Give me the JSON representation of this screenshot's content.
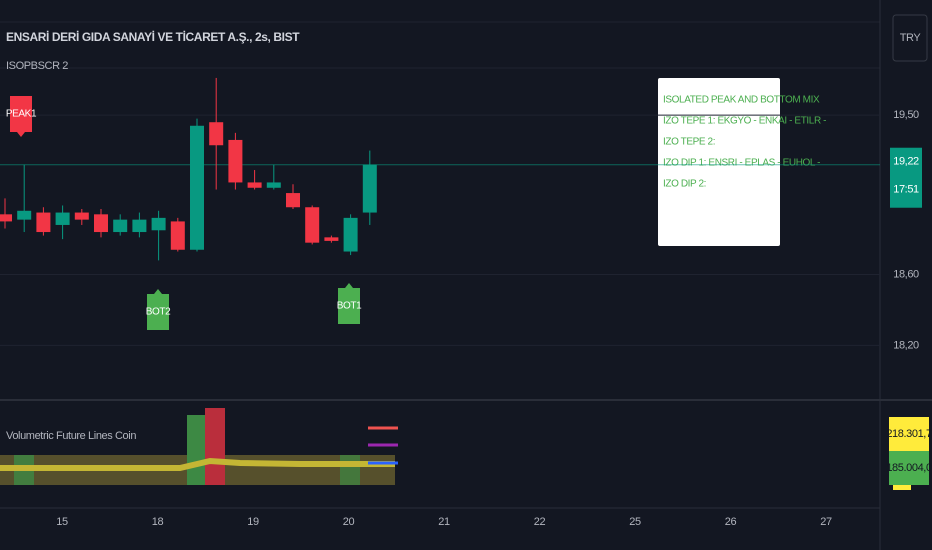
{
  "header": {
    "symbol": "ENSARİ DERİ GIDA SANAYİ VE TİCARET A.Ş., 2s, BIST",
    "indicator": "ISOPBSCR 2",
    "currency": "TRY"
  },
  "chart_data": {
    "type": "candlestick",
    "up_color": "#089981",
    "down_color": "#f23645",
    "candles": {
      "open": [
        18.94,
        18.91,
        18.95,
        18.88,
        18.95,
        18.94,
        18.84,
        18.84,
        18.85,
        18.9,
        18.74,
        19.46,
        19.36,
        19.12,
        19.09,
        19.06,
        18.98,
        18.81,
        18.73,
        18.95
      ],
      "high": [
        19.03,
        19.22,
        18.98,
        18.99,
        18.97,
        18.97,
        18.94,
        18.95,
        18.96,
        18.92,
        19.48,
        19.71,
        19.4,
        19.19,
        19.22,
        19.11,
        18.99,
        18.82,
        18.94,
        19.3
      ],
      "low": [
        18.86,
        18.84,
        18.82,
        18.8,
        18.88,
        18.81,
        18.82,
        18.81,
        18.68,
        18.73,
        18.73,
        19.08,
        19.08,
        19.08,
        19.08,
        18.97,
        18.77,
        18.78,
        18.71,
        18.88
      ],
      "close": [
        18.9,
        18.96,
        18.84,
        18.95,
        18.91,
        18.84,
        18.91,
        18.91,
        18.92,
        18.74,
        19.44,
        19.33,
        19.12,
        19.09,
        19.12,
        18.98,
        18.78,
        18.79,
        18.92,
        19.22
      ]
    },
    "ylim": [
      17.92,
      20.15
    ],
    "yticks": [
      {
        "value": 19.5,
        "label": "19,50"
      },
      {
        "value": 18.6,
        "label": "18,60"
      },
      {
        "value": 18.2,
        "label": "18,20"
      }
    ],
    "grid": true,
    "x_labels": [
      "15",
      "18",
      "19",
      "20",
      "21",
      "22",
      "25",
      "26",
      "27"
    ],
    "last_price": {
      "value": 19.22,
      "label": "19,22"
    },
    "countdown": "17:51",
    "markers": [
      {
        "label": "PEAK1",
        "color": "#f23645"
      },
      {
        "label": "BOT2",
        "color": "#4caf50"
      },
      {
        "label": "BOT1",
        "color": "#4caf50"
      }
    ]
  },
  "info_box": {
    "lines": [
      "ISOLATED PEAK AND BOTTOM MIX",
      "IZO TEPE 1: EKGYO - ENKAI - ETILR -",
      "IZO TEPE 2:",
      "IZO DIP 1: ENSRI - EPLAS - EUHOL -",
      "IZO DIP 2:"
    ]
  },
  "lower_pane": {
    "title": "Volumetric Future Lines Coin",
    "values": [
      {
        "value": 218301.7,
        "label": "218.301,7"
      },
      {
        "value": 185004.0,
        "label": "185.004,0"
      }
    ]
  }
}
